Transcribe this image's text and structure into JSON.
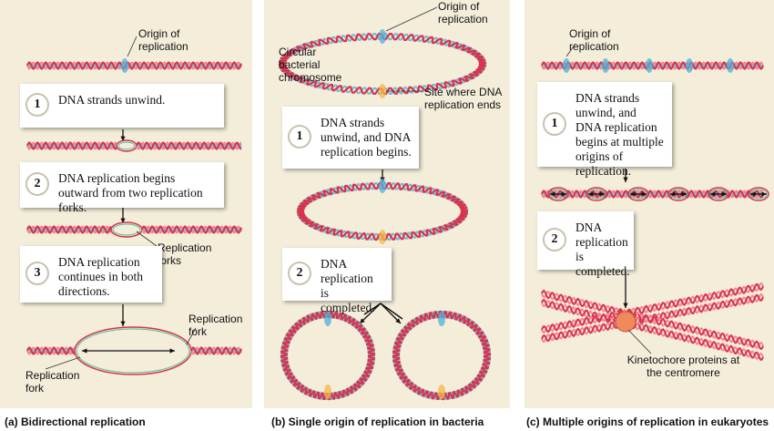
{
  "panels": [
    {
      "caption": "(a) Bidirectional replication",
      "labels": [
        "Origin of replication",
        "Replication forks",
        "Replication fork",
        "Replication fork"
      ],
      "steps": [
        {
          "number": "1",
          "text": "DNA strands unwind."
        },
        {
          "number": "2",
          "text": "DNA replication begins outward from two replication forks."
        },
        {
          "number": "3",
          "text": "DNA replication continues in both directions."
        }
      ]
    },
    {
      "caption": "(b) Single origin of replication in bacteria",
      "labels": [
        "Origin of replication",
        "Circular bacterial chromosome",
        "Site where DNA replication ends"
      ],
      "steps": [
        {
          "number": "1",
          "text": "DNA strands unwind, and DNA replication begins."
        },
        {
          "number": "2",
          "text": "DNA replication is completed."
        }
      ]
    },
    {
      "caption": "(c) Multiple origins of replication in eukaryotes",
      "labels": [
        "Origin of replication",
        "Kinetochore proteins at the centromere"
      ],
      "steps": [
        {
          "number": "1",
          "text": "DNA strands unwind, and DNA replication begins at multiple origins of replication."
        },
        {
          "number": "2",
          "text": "DNA replication is completed."
        }
      ]
    }
  ]
}
